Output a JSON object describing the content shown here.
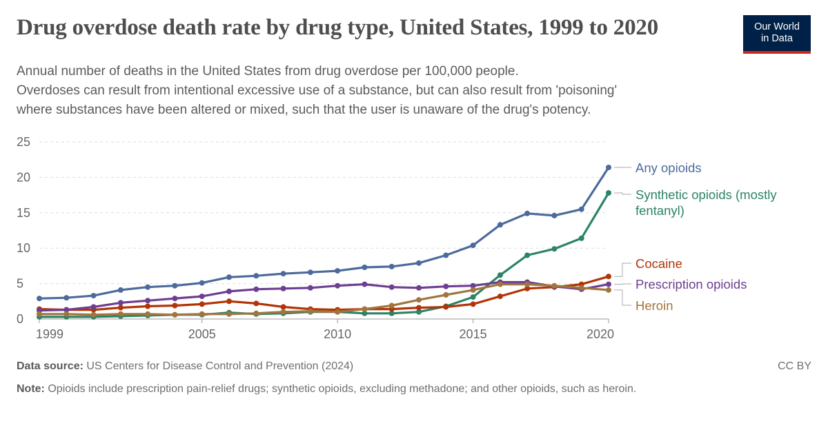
{
  "header": {
    "title": "Drug overdose death rate by drug type, United States, 1999 to 2020",
    "subtitle_lines": [
      "Annual number of deaths in the United States from drug overdose per 100,000 people.",
      "Overdoses can result from intentional excessive use of a substance, but can also result from 'poisoning'",
      "where substances have been altered or mixed, such that the user is unaware of the drug's potency."
    ],
    "logo_lines": [
      "Our World",
      "in Data"
    ]
  },
  "footer": {
    "source_label": "Data source:",
    "source_text": "US Centers for Disease Control and Prevention (2024)",
    "license": "CC BY",
    "note_label": "Note:",
    "note_text": "Opioids include prescription pain-relief drugs; synthetic opioids, excluding methadone; and other opioids, such as heroin."
  },
  "chart_data": {
    "type": "line",
    "title": "Drug overdose death rate by drug type, United States, 1999 to 2020",
    "xlabel": "",
    "ylabel": "",
    "x": [
      1999,
      2000,
      2001,
      2002,
      2003,
      2004,
      2005,
      2006,
      2007,
      2008,
      2009,
      2010,
      2011,
      2012,
      2013,
      2014,
      2015,
      2016,
      2017,
      2018,
      2019,
      2020
    ],
    "xlim": [
      1999,
      2020
    ],
    "ylim": [
      0,
      25
    ],
    "x_ticks": [
      {
        "value": 1999,
        "label": "1999"
      },
      {
        "value": 2005,
        "label": "2005"
      },
      {
        "value": 2010,
        "label": "2010"
      },
      {
        "value": 2015,
        "label": "2015"
      },
      {
        "value": 2020,
        "label": "2020"
      }
    ],
    "y_ticks": [
      {
        "value": 0,
        "label": "0"
      },
      {
        "value": 5,
        "label": "5"
      },
      {
        "value": 10,
        "label": "10"
      },
      {
        "value": 15,
        "label": "15"
      },
      {
        "value": 20,
        "label": "20"
      },
      {
        "value": 25,
        "label": "25"
      }
    ],
    "grid": "horizontal-dashed",
    "legend": "right-end-labels",
    "series": [
      {
        "name": "Any opioids",
        "label_lines": [
          "Any opioids"
        ],
        "color": "#4c6a9c",
        "values": [
          2.9,
          3.0,
          3.3,
          4.1,
          4.5,
          4.7,
          5.1,
          5.9,
          6.1,
          6.4,
          6.6,
          6.8,
          7.3,
          7.4,
          7.9,
          9.0,
          10.4,
          13.3,
          14.9,
          14.6,
          15.5,
          21.4
        ]
      },
      {
        "name": "Synthetic opioids (mostly fentanyl)",
        "label_lines": [
          "Synthetic opioids (mostly",
          "fentanyl)"
        ],
        "color": "#2c8465",
        "values": [
          0.3,
          0.3,
          0.3,
          0.4,
          0.5,
          0.6,
          0.6,
          0.9,
          0.7,
          0.8,
          1.0,
          1.0,
          0.8,
          0.8,
          1.0,
          1.8,
          3.1,
          6.2,
          9.0,
          9.9,
          11.4,
          17.8
        ]
      },
      {
        "name": "Cocaine",
        "label_lines": [
          "Cocaine"
        ],
        "color": "#b13507",
        "values": [
          1.4,
          1.3,
          1.3,
          1.6,
          1.8,
          1.9,
          2.1,
          2.5,
          2.2,
          1.7,
          1.4,
          1.3,
          1.4,
          1.4,
          1.6,
          1.7,
          2.1,
          3.2,
          4.3,
          4.5,
          4.9,
          6.0
        ]
      },
      {
        "name": "Prescription opioids",
        "label_lines": [
          "Prescription opioids"
        ],
        "color": "#6d3e91",
        "values": [
          1.2,
          1.3,
          1.7,
          2.3,
          2.6,
          2.9,
          3.2,
          3.9,
          4.2,
          4.3,
          4.4,
          4.7,
          4.9,
          4.5,
          4.4,
          4.6,
          4.7,
          5.2,
          5.2,
          4.6,
          4.2,
          4.9
        ]
      },
      {
        "name": "Heroin",
        "label_lines": [
          "Heroin"
        ],
        "color": "#a2753f",
        "values": [
          0.7,
          0.7,
          0.6,
          0.7,
          0.7,
          0.6,
          0.7,
          0.7,
          0.8,
          1.0,
          1.1,
          1.0,
          1.4,
          1.9,
          2.7,
          3.4,
          4.1,
          4.9,
          4.9,
          4.7,
          4.4,
          4.1
        ]
      }
    ]
  }
}
